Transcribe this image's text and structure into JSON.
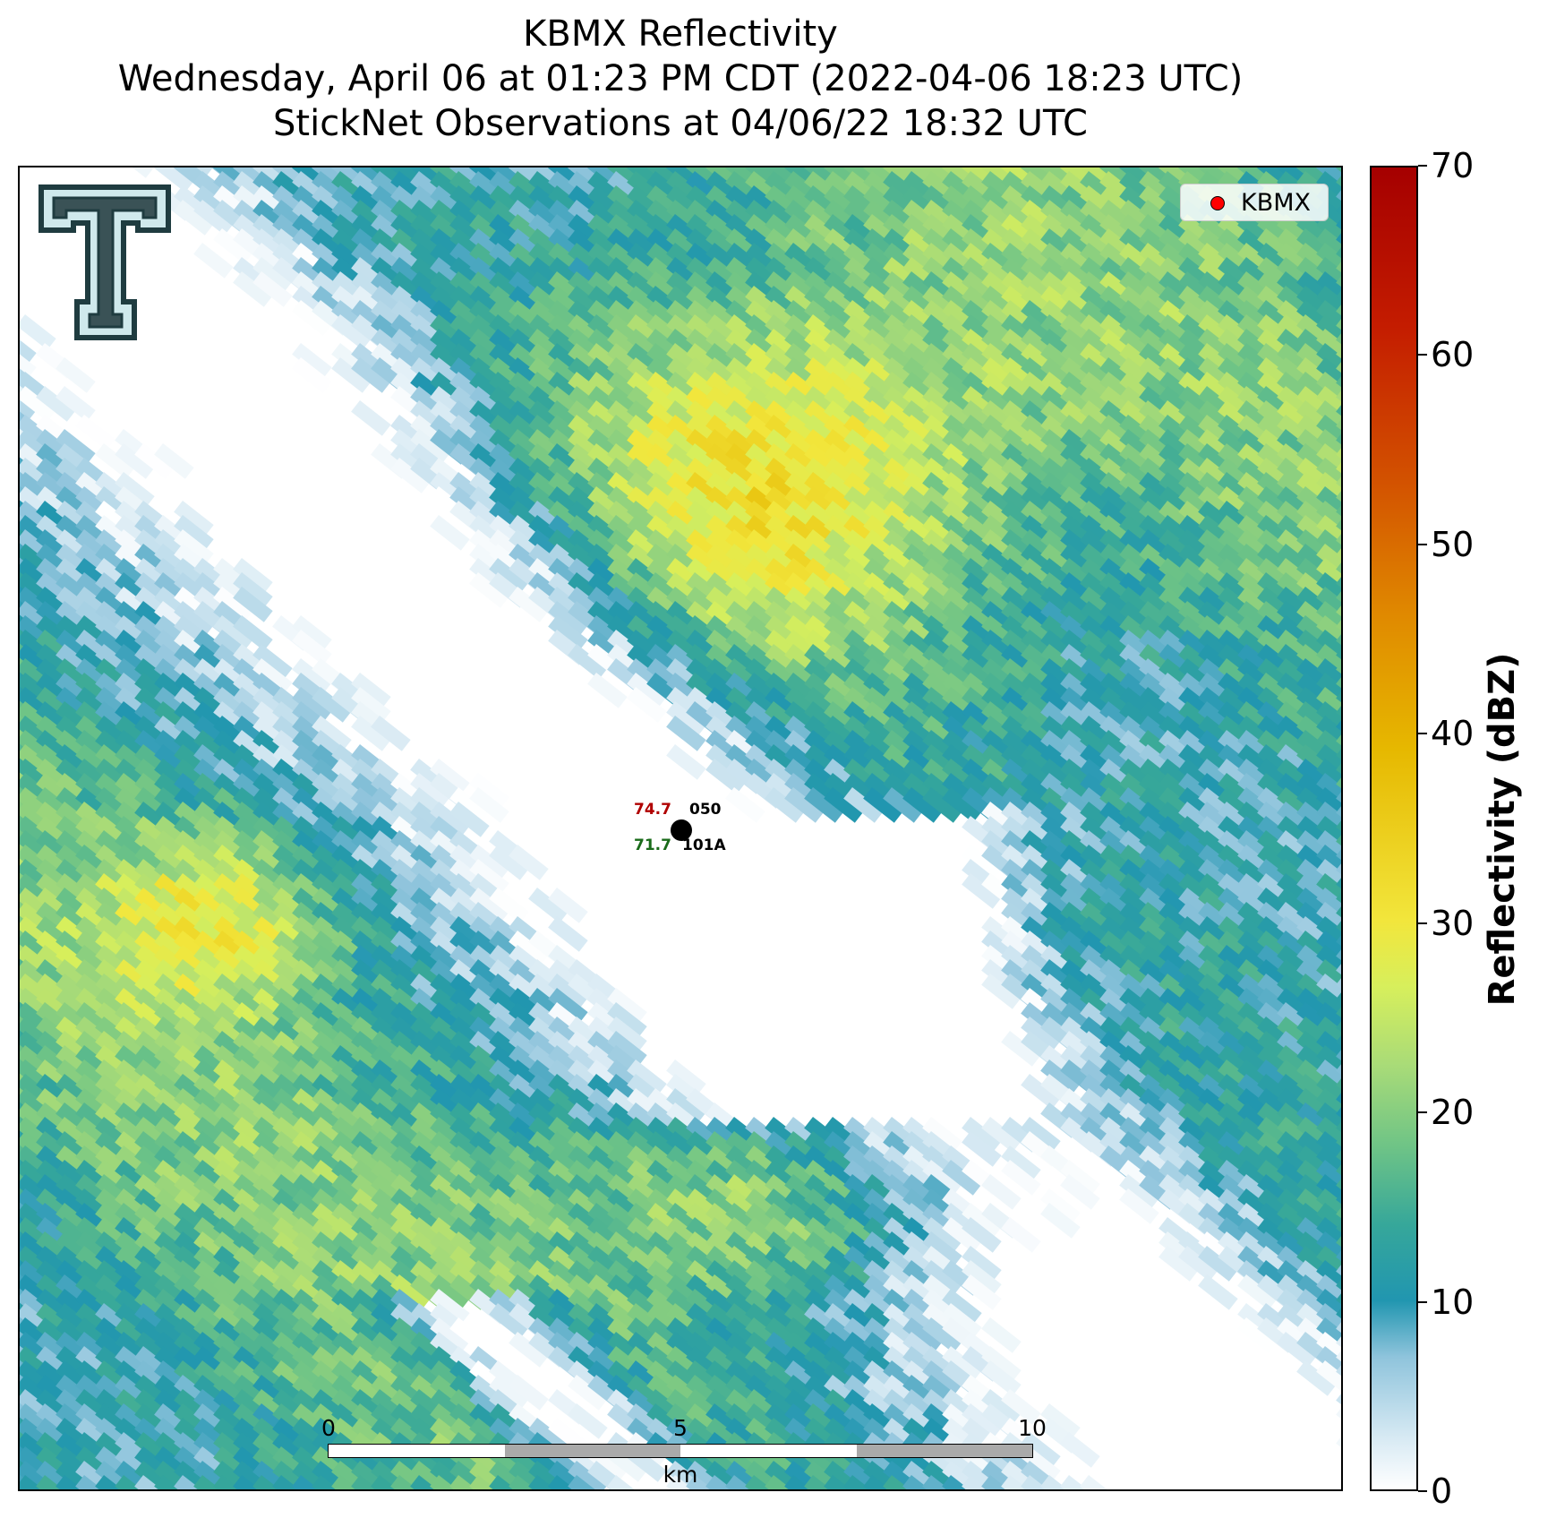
{
  "title": {
    "line1": "KBMX Reflectivity",
    "line2": "Wednesday, April 06 at 01:23 PM CDT (2022-04-06 18:23 UTC)",
    "line3": "StickNet Observations at 04/06/22 18:32 UTC"
  },
  "legend": {
    "label": "KBMX",
    "marker_color": "#ff0000"
  },
  "colorbar": {
    "label": "Reflectivity (dBZ)",
    "min": 0,
    "max": 70,
    "ticks": [
      "0",
      "10",
      "20",
      "30",
      "40",
      "50",
      "60",
      "70"
    ]
  },
  "stations": [
    {
      "id": "050",
      "temperature": "74.7",
      "dewpoint": "71.7",
      "second_id": "101A"
    }
  ],
  "scale_bar": {
    "unit": "km",
    "labels": [
      "0",
      "5",
      "10"
    ]
  },
  "logo": {
    "name": "texas-tech-double-t-logo"
  },
  "colors": {
    "temperature": "#b00000",
    "dewpoint": "#1a6b1a",
    "reflectivity_low": "#2196b0",
    "reflectivity_mid": "#d7ef5c",
    "reflectivity_high": "#e6b800"
  }
}
